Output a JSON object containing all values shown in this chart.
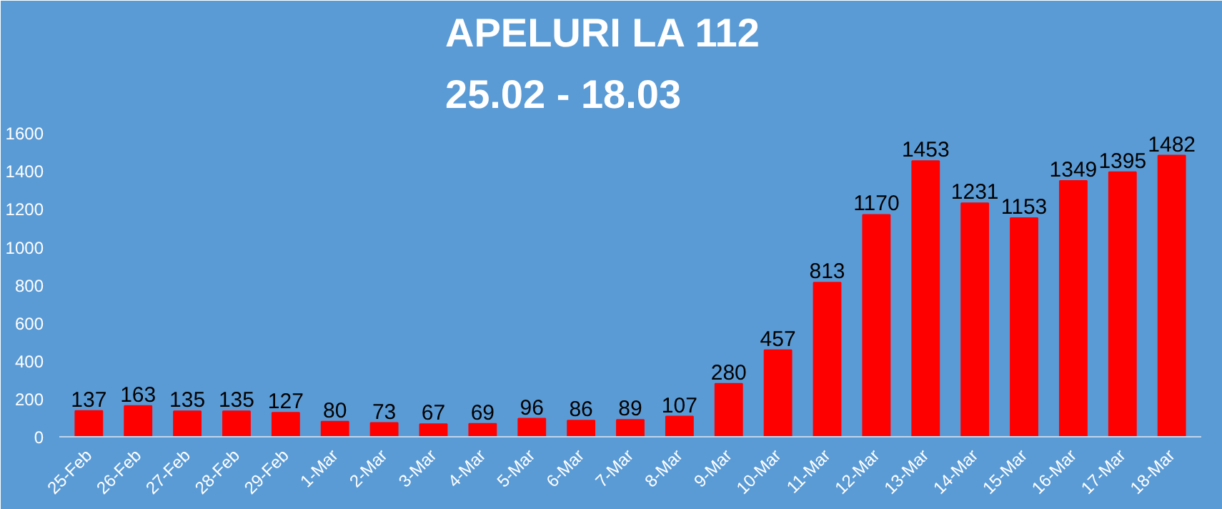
{
  "chart_data": {
    "type": "bar",
    "title": "APELURI LA 112",
    "subtitle": "25.02 - 18.03",
    "categories": [
      "25-Feb",
      "26-Feb",
      "27-Feb",
      "28-Feb",
      "29-Feb",
      "1-Mar",
      "2-Mar",
      "3-Mar",
      "4-Mar",
      "5-Mar",
      "6-Mar",
      "7-Mar",
      "8-Mar",
      "9-Mar",
      "10-Mar",
      "11-Mar",
      "12-Mar",
      "13-Mar",
      "14-Mar",
      "15-Mar",
      "16-Mar",
      "17-Mar",
      "18-Mar"
    ],
    "values": [
      137,
      163,
      135,
      135,
      127,
      80,
      73,
      67,
      69,
      96,
      86,
      89,
      107,
      280,
      457,
      813,
      1170,
      1453,
      1231,
      1153,
      1349,
      1395,
      1482
    ],
    "color": "#ff0000",
    "ylim": [
      0,
      1650
    ],
    "yticks": [
      0,
      200,
      400,
      600,
      800,
      1000,
      1200,
      1400,
      1600
    ],
    "grid": false,
    "data_labels": true
  }
}
